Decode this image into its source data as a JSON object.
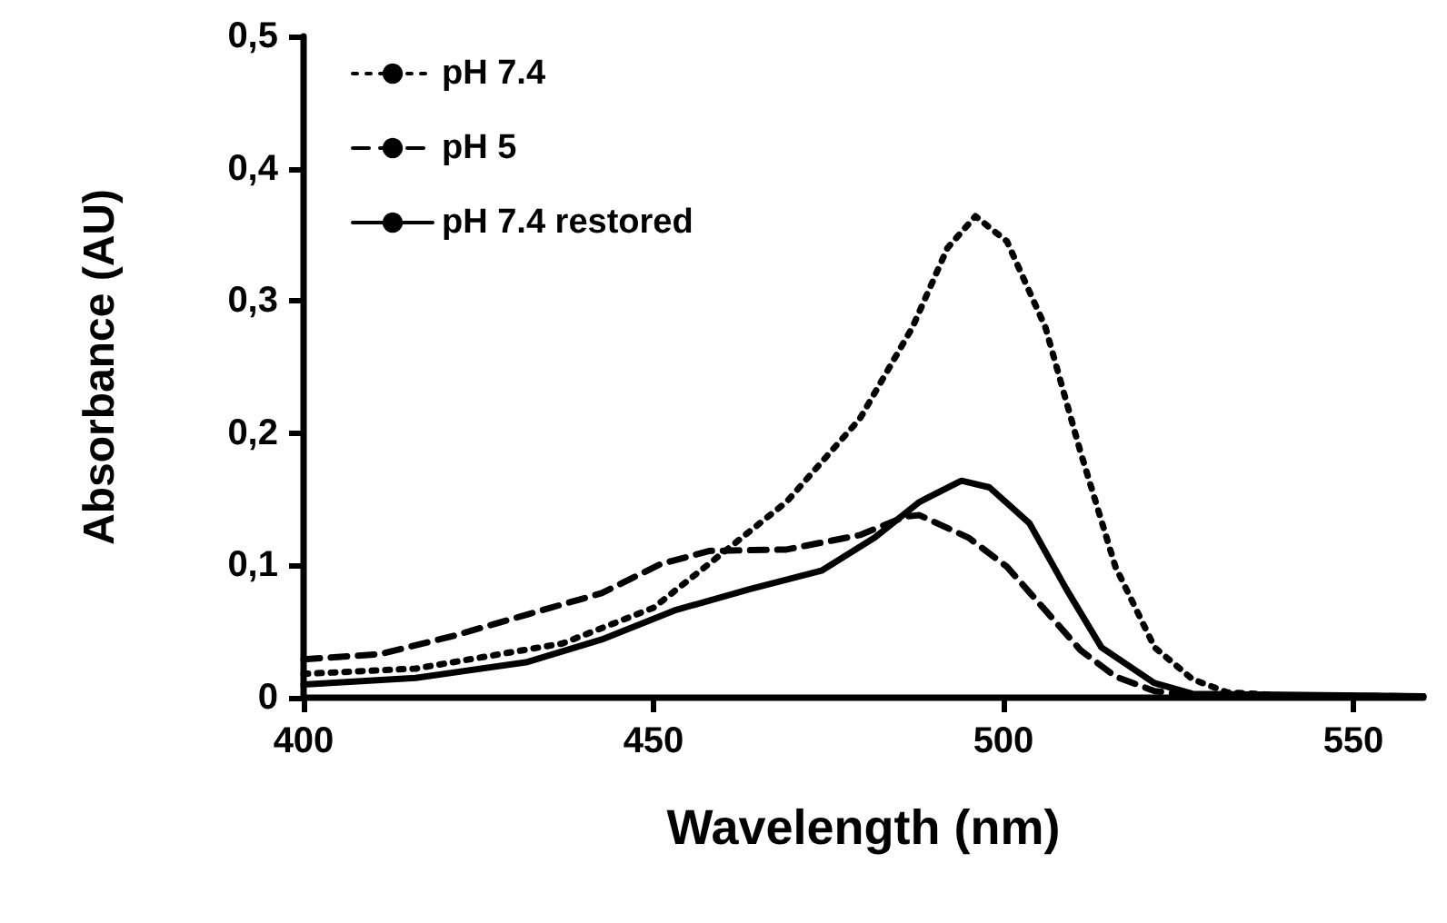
{
  "chart_data": {
    "type": "line",
    "xlabel": "Wavelength (nm)",
    "ylabel": "Absorbance (AU)",
    "xlim": [
      400,
      560
    ],
    "xticks": [
      400,
      450,
      500,
      550
    ],
    "ylim": [
      0,
      0.5
    ],
    "yticks": [
      0,
      {
        "value": 0.1,
        "label": "0,1"
      },
      {
        "value": 0.2,
        "label": "0,2"
      },
      {
        "value": 0.3,
        "label": "0,3"
      },
      {
        "value": 0.4,
        "label": "0,4"
      },
      {
        "value": 0.5,
        "label": "0,5"
      }
    ],
    "grid": false,
    "legend": "top left",
    "marker": "none",
    "series": [
      {
        "name": "pH 7.4",
        "color": "#000000",
        "line_style": "dotted",
        "x": [
          400,
          416,
          437,
          450,
          460.5,
          469,
          479.5,
          487,
          492,
          496,
          500.5,
          506,
          511,
          516,
          521.6,
          527,
          532,
          542.6,
          560
        ],
        "values": [
          0.018,
          0.022,
          0.041,
          0.068,
          0.112,
          0.148,
          0.211,
          0.28,
          0.34,
          0.364,
          0.345,
          0.28,
          0.186,
          0.099,
          0.038,
          0.014,
          0.004,
          0.001,
          0.001
        ]
      },
      {
        "name": "pH 5",
        "color": "#000000",
        "line_style": "dashed",
        "x": [
          400,
          411,
          421.6,
          432,
          442.6,
          451,
          458,
          469,
          479.5,
          486,
          488,
          495,
          500.5,
          506,
          511,
          516,
          521.6,
          527,
          560
        ],
        "values": [
          0.029,
          0.033,
          0.047,
          0.063,
          0.079,
          0.101,
          0.111,
          0.112,
          0.123,
          0.137,
          0.138,
          0.121,
          0.099,
          0.066,
          0.036,
          0.016,
          0.005,
          0.002,
          0.001
        ]
      },
      {
        "name": "pH 7.4 restored",
        "color": "#000000",
        "line_style": "solid",
        "x": [
          400,
          416,
          432,
          442.6,
          453,
          463.7,
          474,
          481.6,
          488,
          494,
          498,
          503.7,
          509,
          514,
          521.6,
          527,
          560
        ],
        "values": [
          0.01,
          0.015,
          0.027,
          0.044,
          0.066,
          0.082,
          0.096,
          0.121,
          0.148,
          0.164,
          0.159,
          0.132,
          0.082,
          0.038,
          0.011,
          0.003,
          0.001
        ]
      }
    ]
  }
}
